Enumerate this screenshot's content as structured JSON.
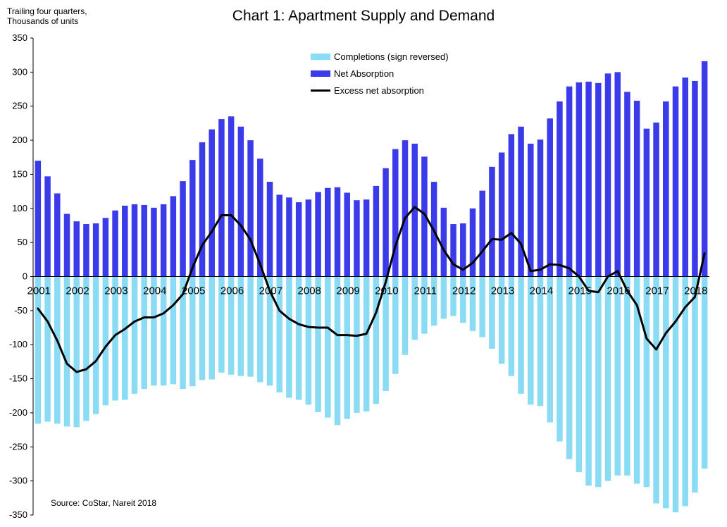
{
  "chart_data": {
    "type": "bar",
    "title": "Chart 1: Apartment Supply and Demand",
    "ylabel": "Trailing four quarters,\nThousands of units",
    "source": "Source: CoStar, Nareit 2018",
    "ylim": [
      -350,
      350
    ],
    "yticks": [
      350,
      300,
      250,
      200,
      150,
      100,
      50,
      0,
      -50,
      -100,
      -150,
      -200,
      -250,
      -300,
      -350
    ],
    "year_labels": [
      "2001",
      "2002",
      "2003",
      "2004",
      "2005",
      "2006",
      "2007",
      "2008",
      "2009",
      "2010",
      "2011",
      "2012",
      "2013",
      "2014",
      "2015",
      "2016",
      "2017",
      "2018"
    ],
    "quarters_start": "2001",
    "grid": false,
    "legend_position": "top-center",
    "series": [
      {
        "name": "Completions (sign reversed)",
        "kind": "bar",
        "color": "#8adcf5",
        "values": [
          -216,
          -213,
          -216,
          -220,
          -221,
          -212,
          -202,
          -189,
          -182,
          -181,
          -172,
          -165,
          -160,
          -160,
          -158,
          -165,
          -161,
          -152,
          -151,
          -141,
          -144,
          -146,
          -147,
          -155,
          -160,
          -170,
          -178,
          -181,
          -188,
          -199,
          -207,
          -218,
          -209,
          -200,
          -198,
          -187,
          -168,
          -143,
          -115,
          -93,
          -84,
          -72,
          -62,
          -58,
          -68,
          -80,
          -89,
          -106,
          -128,
          -146,
          -172,
          -188,
          -190,
          -214,
          -242,
          -268,
          -287,
          -307,
          -309,
          -300,
          -292,
          -292,
          -304,
          -309,
          -333,
          -340,
          -346,
          -337,
          -317,
          -282
        ]
      },
      {
        "name": "Net Absorption",
        "kind": "bar",
        "color": "#3b3bea",
        "values": [
          170,
          147,
          122,
          92,
          81,
          77,
          78,
          86,
          97,
          104,
          106,
          105,
          101,
          106,
          118,
          140,
          171,
          197,
          216,
          231,
          235,
          220,
          200,
          173,
          139,
          120,
          116,
          109,
          113,
          124,
          130,
          131,
          123,
          112,
          113,
          133,
          159,
          187,
          200,
          195,
          176,
          139,
          101,
          77,
          78,
          100,
          126,
          161,
          182,
          209,
          220,
          195,
          201,
          232,
          257,
          279,
          285,
          286,
          284,
          298,
          300,
          271,
          258,
          217,
          226,
          257,
          279,
          292,
          287,
          316
        ]
      },
      {
        "name": "Excess net absorption",
        "kind": "line",
        "color": "#000000",
        "values": [
          -47,
          -66,
          -94,
          -128,
          -140,
          -136,
          -124,
          -103,
          -86,
          -77,
          -66,
          -60,
          -60,
          -54,
          -42,
          -26,
          13,
          46,
          66,
          90,
          90,
          75,
          54,
          18,
          -21,
          -50,
          -62,
          -70,
          -74,
          -75,
          -75,
          -86,
          -86,
          -87,
          -84,
          -53,
          -8,
          45,
          86,
          102,
          92,
          67,
          39,
          18,
          10,
          20,
          37,
          55,
          54,
          64,
          48,
          8,
          10,
          18,
          17,
          12,
          0,
          -21,
          -23,
          0,
          8,
          -21,
          -42,
          -91,
          -107,
          -83,
          -66,
          -45,
          -30,
          34
        ]
      }
    ]
  }
}
